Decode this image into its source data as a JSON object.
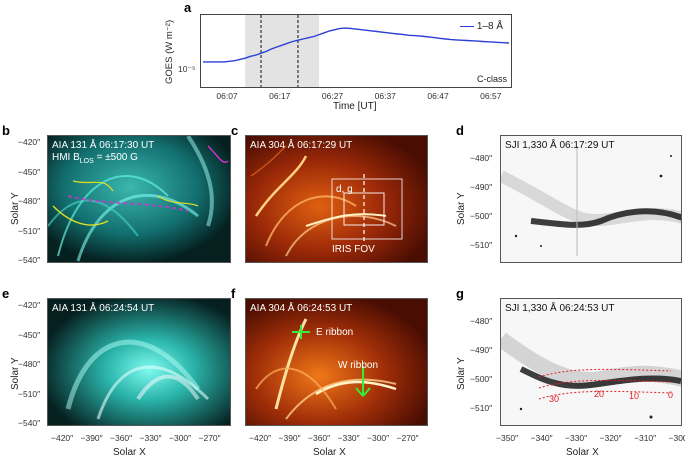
{
  "panel_labels": {
    "a": "a",
    "b": "b",
    "c": "c",
    "d": "d",
    "e": "e",
    "f": "f",
    "g": "g"
  },
  "panel_a": {
    "ylabel": "GOES (W m⁻²)",
    "ytick": "10⁻⁵",
    "xlabel": "Time [UT]",
    "legend": "1–8 Å",
    "class_label": "C-class",
    "chart_data": {
      "type": "line",
      "title": "",
      "xlabel": "Time [UT]",
      "ylabel": "GOES (W m⁻²)",
      "x_ticks": [
        "06:07",
        "06:17",
        "06:27",
        "06:37",
        "06:47",
        "06:57"
      ],
      "x_minutes": [
        0,
        1,
        2,
        3,
        4,
        5,
        6,
        7,
        8,
        9,
        10,
        11,
        12,
        13,
        14,
        15,
        16,
        17,
        18,
        19,
        20,
        21,
        22,
        23,
        24,
        25,
        26,
        27,
        28,
        29,
        30,
        31,
        32,
        33,
        34,
        35,
        36,
        37,
        38,
        39,
        40,
        41,
        42,
        43,
        44,
        45,
        46,
        47,
        48,
        49,
        50,
        51,
        52,
        53,
        54,
        55,
        56,
        57,
        58
      ],
      "series": [
        {
          "name": "1–8 Å",
          "color": "#2b3fd6",
          "values": [
            0.34,
            0.34,
            0.34,
            0.34,
            0.34,
            0.35,
            0.36,
            0.38,
            0.4,
            0.43,
            0.45,
            0.48,
            0.51,
            0.55,
            0.58,
            0.61,
            0.64,
            0.67,
            0.69,
            0.71,
            0.73,
            0.75,
            0.78,
            0.81,
            0.84,
            0.86,
            0.88,
            0.885,
            0.88,
            0.87,
            0.86,
            0.85,
            0.84,
            0.83,
            0.82,
            0.81,
            0.8,
            0.79,
            0.78,
            0.77,
            0.765,
            0.76,
            0.75,
            0.74,
            0.73,
            0.72,
            0.71,
            0.7,
            0.695,
            0.69,
            0.685,
            0.68,
            0.675,
            0.67,
            0.665,
            0.66,
            0.655,
            0.65,
            0.645
          ]
        }
      ],
      "y_scale": "log (relative units)",
      "shaded_interval_min": [
        8,
        22
      ],
      "dashed_lines_min": [
        11,
        18
      ]
    }
  },
  "axes": {
    "solar_x": "Solar X",
    "solar_y": "Solar Y",
    "y_ticks_left": [
      "−420″",
      "−450″",
      "−480″",
      "−510″",
      "−540″"
    ],
    "y_ticks_right": [
      "−480″",
      "−490″",
      "−500″",
      "−510″"
    ],
    "x_ticks_aia": [
      "−420″",
      "−390″",
      "−360″",
      "−330″",
      "−300″",
      "−270″"
    ],
    "x_ticks_iris": [
      "−350″",
      "−340″",
      "−330″",
      "−320″",
      "−310″",
      "−300″"
    ]
  },
  "panel_b": {
    "title": "AIA 131 Å 06:17:30 UT",
    "subtitle": "HMI B",
    "subscript": "LOS",
    "subtitle_tail": " = ±500 G"
  },
  "panel_c": {
    "title": "AIA 304 Å 06:17:29 UT",
    "box_label": "d, g",
    "fov_label": "IRIS FOV"
  },
  "panel_d": {
    "title": "SJI 1,330 Å 06:17:29 UT"
  },
  "panel_e": {
    "title": "AIA 131 Å 06:24:54 UT"
  },
  "panel_f": {
    "title": "AIA 304 Å 06:24:53 UT",
    "e_ribbon": "E ribbon",
    "w_ribbon": "W ribbon"
  },
  "panel_g": {
    "title": "SJI 1,330 Å 06:24:53 UT",
    "markers": [
      "30",
      "20",
      "10",
      "0"
    ]
  }
}
